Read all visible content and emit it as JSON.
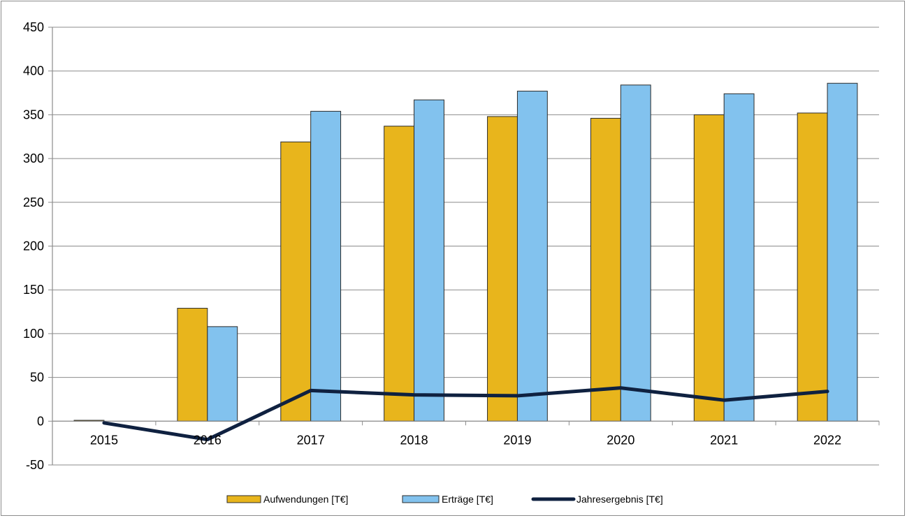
{
  "chart_data": {
    "type": "bar",
    "categories": [
      "2015",
      "2016",
      "2017",
      "2018",
      "2019",
      "2020",
      "2021",
      "2022"
    ],
    "series": [
      {
        "name": "Aufwendungen [T€]",
        "type": "bar",
        "color": "#e8b51c",
        "values": [
          1,
          129,
          319,
          337,
          348,
          346,
          350,
          352
        ]
      },
      {
        "name": "Erträge [T€]",
        "type": "bar",
        "color": "#82c2ee",
        "values": [
          0,
          108,
          354,
          367,
          377,
          384,
          374,
          386
        ]
      },
      {
        "name": "Jahresergebnis [T€]",
        "type": "line",
        "color": "#0f2140",
        "values": [
          -2,
          -21,
          35,
          30,
          29,
          38,
          24,
          34
        ]
      }
    ],
    "ylim": [
      -50,
      450
    ],
    "yticks": [
      -50,
      0,
      50,
      100,
      150,
      200,
      250,
      300,
      350,
      400,
      450
    ],
    "grid": true,
    "legend_position": "bottom"
  }
}
